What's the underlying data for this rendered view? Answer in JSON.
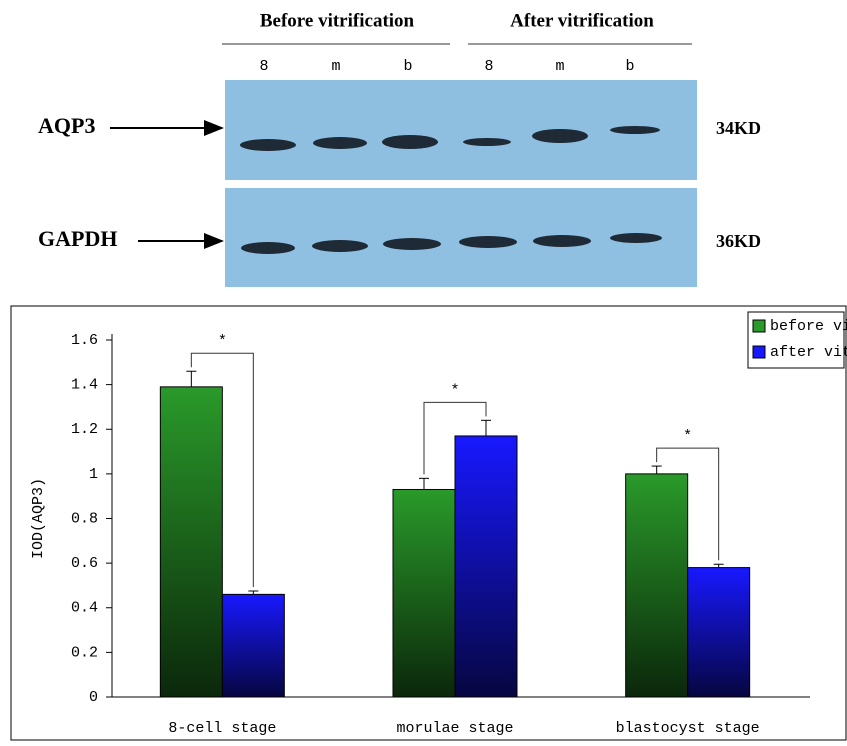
{
  "blot": {
    "groups": [
      "Before vitrification",
      "After vitrification"
    ],
    "lanes": [
      "8",
      "m",
      "b",
      "8",
      "m",
      "b"
    ],
    "rows": [
      {
        "label": "AQP3",
        "size": "34KD"
      },
      {
        "label": "GAPDH",
        "size": "36KD"
      }
    ]
  },
  "chart_data": {
    "type": "bar",
    "ylabel": "IOD(AQP3)",
    "categories": [
      "8-cell stage",
      "morulae stage",
      "blastocyst stage"
    ],
    "series": [
      {
        "name": "before vitrification",
        "color": "#2a9a2a",
        "values": [
          1.39,
          0.93,
          1.0
        ],
        "errors": [
          0.07,
          0.05,
          0.035
        ]
      },
      {
        "name": "after vitrification",
        "color": "#1818ff",
        "values": [
          0.46,
          1.17,
          0.58
        ],
        "errors": [
          0.015,
          0.07,
          0.015
        ]
      }
    ],
    "annotations": [
      "*",
      "*",
      "*"
    ],
    "ylim": [
      0,
      1.6
    ],
    "yticks": [
      0,
      0.2,
      0.4,
      0.6,
      0.8,
      1,
      1.2,
      1.4,
      1.6
    ],
    "legend": "top-right"
  }
}
